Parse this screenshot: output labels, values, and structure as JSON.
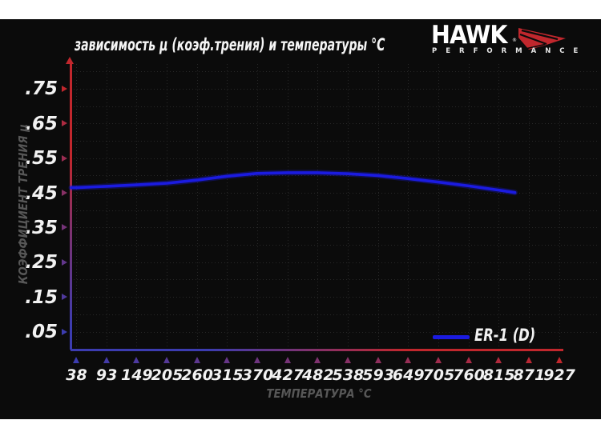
{
  "theme": {
    "background": "#0b0b0b",
    "frame": "#ffffff",
    "text_white": "#f2f2f2",
    "text_muted": "#575757",
    "axis_red": "#c1272d",
    "axis_blue": "#3c3cb0",
    "grid": "#272727",
    "curve_blue": "#1b1be0",
    "logo_accent": "#c1272d"
  },
  "header": {
    "logo": {
      "brand": "HAWK",
      "reg": "®",
      "sub": "PERFORMANCE"
    }
  },
  "chart_data": {
    "type": "line",
    "title": "зависимость μ (коэф.трения) и температуры °C",
    "xlabel": "ТЕМПЕРАТУРА °C",
    "ylabel": "КОЭФФИЦИЕНТ ТРЕНИЯ μ",
    "x_ticks": [
      38,
      93,
      149,
      205,
      260,
      315,
      370,
      427,
      482,
      538,
      593,
      649,
      705,
      760,
      815,
      871,
      927
    ],
    "y_ticks": [
      0.75,
      0.65,
      0.55,
      0.45,
      0.35,
      0.25,
      0.15,
      0.05
    ],
    "y_tick_labels": [
      ".75",
      ".65",
      ".55",
      ".45",
      ".35",
      ".25",
      ".15",
      ".05"
    ],
    "xlim": [
      38,
      927
    ],
    "ylim": [
      0,
      0.82
    ],
    "grid": "dotted",
    "legend_position": "bottom-right",
    "series": [
      {
        "name": "ER-1 (D)",
        "color": "#1b1be0",
        "x": [
          38,
          93,
          149,
          205,
          260,
          315,
          370,
          427,
          482,
          538,
          593,
          649,
          705,
          760,
          815,
          845
        ],
        "y": [
          0.466,
          0.47,
          0.474,
          0.479,
          0.488,
          0.499,
          0.507,
          0.509,
          0.509,
          0.506,
          0.501,
          0.492,
          0.482,
          0.471,
          0.459,
          0.452
        ]
      }
    ]
  }
}
